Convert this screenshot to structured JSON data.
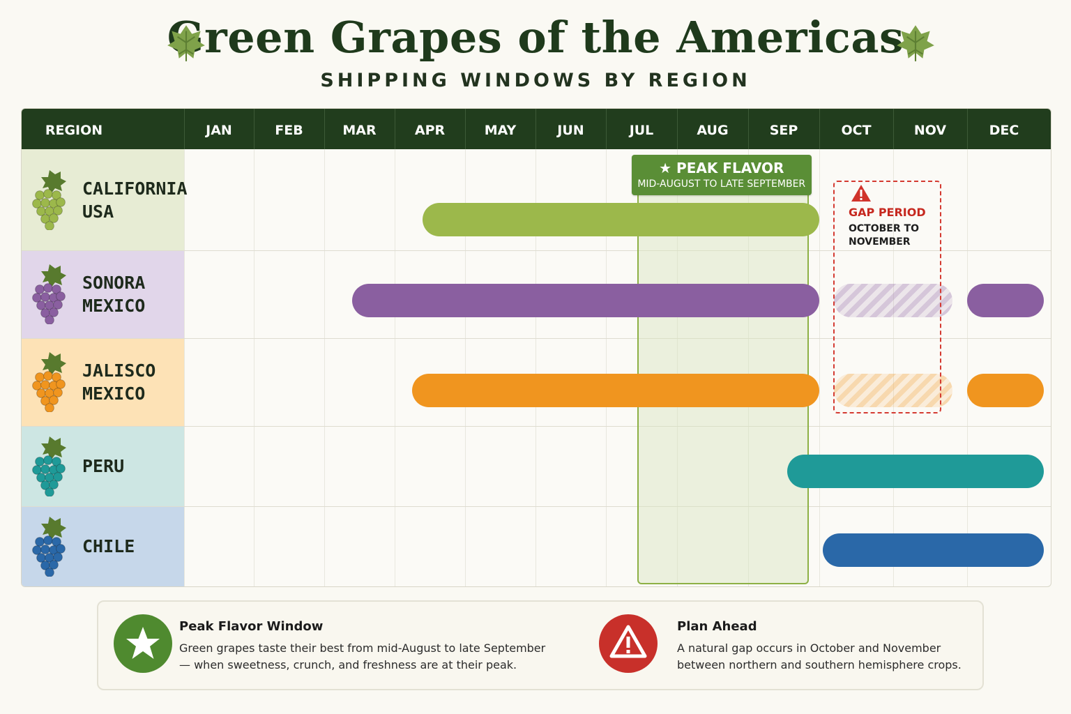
{
  "title": "Green Grapes of the Americas",
  "subtitle": "SHIPPING WINDOWS BY REGION",
  "header": {
    "region_label": "REGION",
    "months": [
      "JAN",
      "FEB",
      "MAR",
      "APR",
      "MAY",
      "JUN",
      "JUL",
      "AUG",
      "SEP",
      "OCT",
      "NOV",
      "DEC"
    ]
  },
  "regions": [
    {
      "line1": "CALIFORNIA",
      "line2": "USA",
      "color": "#9cb84b",
      "bg": "#e7ecd4",
      "icon": "green-grape-cluster-icon"
    },
    {
      "line1": "SONORA",
      "line2": "MEXICO",
      "color": "#8a5fa0",
      "bg": "#e1d6ea",
      "icon": "purple-grape-cluster-icon"
    },
    {
      "line1": "JALISCO",
      "line2": "MEXICO",
      "color": "#f0951f",
      "bg": "#fde2b6",
      "icon": "orange-grape-cluster-icon"
    },
    {
      "line1": "PERU",
      "line2": "",
      "color": "#1f9a98",
      "bg": "#cde6e3",
      "icon": "teal-grape-cluster-icon"
    },
    {
      "line1": "CHILE",
      "line2": "",
      "color": "#2a68a8",
      "bg": "#c6d7ea",
      "icon": "blue-grape-cluster-icon"
    }
  ],
  "peak": {
    "title": "PEAK FLAVOR",
    "subtitle": "MID-AUGUST TO LATE SEPTEMBER",
    "start": 7.5,
    "end": 9.75,
    "color": "#5a8e36"
  },
  "gap": {
    "title": "GAP PERIOD",
    "subtitle": "OCTOBER TO NOVEMBER",
    "start": 10,
    "end": 11,
    "color": "#d43a31"
  },
  "chart_data": {
    "type": "gantt",
    "title": "Green Grapes of the Americas",
    "subtitle": "SHIPPING WINDOWS BY REGION",
    "x_axis": [
      "JAN",
      "FEB",
      "MAR",
      "APR",
      "MAY",
      "JUN",
      "JUL",
      "AUG",
      "SEP",
      "OCT",
      "NOV",
      "DEC"
    ],
    "series": [
      {
        "name": "CALIFORNIA USA",
        "windows": [
          {
            "start": 4.4,
            "end": 10.0
          }
        ],
        "gaps": []
      },
      {
        "name": "SONORA MEXICO",
        "windows": [
          {
            "start": 3.4,
            "end": 10.0
          },
          {
            "start": 12.0,
            "end": 13.1
          }
        ],
        "gaps": [
          {
            "start": 10.2,
            "end": 11.8
          }
        ]
      },
      {
        "name": "JALISCO MEXICO",
        "windows": [
          {
            "start": 4.25,
            "end": 10.0
          },
          {
            "start": 12.0,
            "end": 13.1
          }
        ],
        "gaps": [
          {
            "start": 10.2,
            "end": 11.8
          }
        ]
      },
      {
        "name": "PERU",
        "windows": [
          {
            "start": 9.55,
            "end": 13.1
          }
        ],
        "gaps": []
      },
      {
        "name": "CHILE",
        "windows": [
          {
            "start": 10.05,
            "end": 13.1
          }
        ],
        "gaps": []
      }
    ]
  },
  "legend": {
    "peak_title": "Peak Flavor Window",
    "peak_text": "Green grapes taste their best from mid-August to late September— when sweetness, crunch, and freshness are at their peak.",
    "plan_title": "Plan Ahead",
    "plan_text": "A natural gap occurs in October and November between northern and southern hemisphere crops.",
    "peak_icon": "star-icon",
    "plan_icon": "warning-icon",
    "peak_color": "#4f8a2f",
    "plan_color": "#c8302a"
  }
}
